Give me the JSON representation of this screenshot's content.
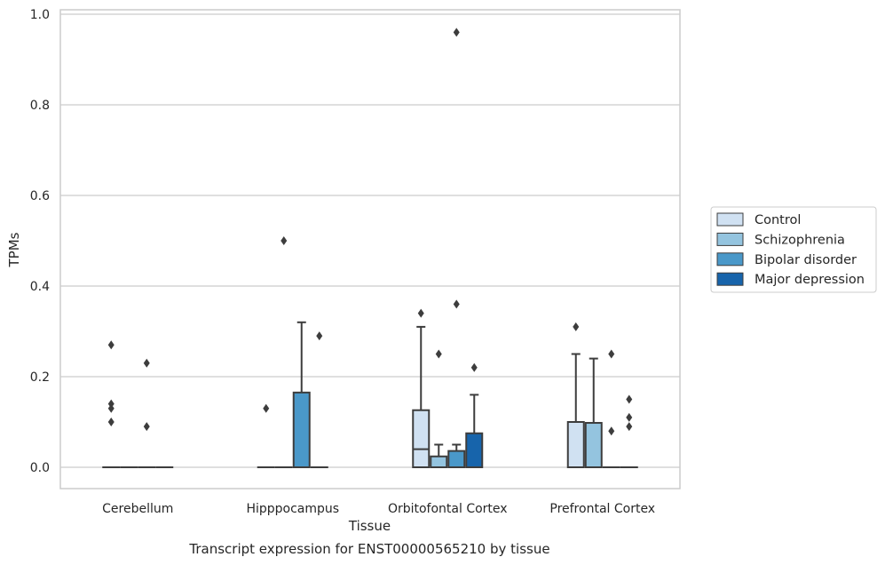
{
  "chart_data": {
    "type": "boxplot",
    "title": "",
    "caption": "Transcript expression for ENST00000565210 by tissue",
    "xlabel": "Tissue",
    "ylabel": "TPMs",
    "ylim": [
      -0.045,
      1.01
    ],
    "yticks": [
      "0.0",
      "0.2",
      "0.4",
      "0.6",
      "0.8",
      "1.0"
    ],
    "grid": "horizontal",
    "legend_position": "right",
    "categories": [
      "Cerebellum",
      "Hipppocampus",
      "Orbitofontal Cortex",
      "Prefrontal Cortex"
    ],
    "series": [
      {
        "name": "Control",
        "color": "#d0e1f2"
      },
      {
        "name": "Schizophrenia",
        "color": "#94c4df"
      },
      {
        "name": "Bipolar disorder",
        "color": "#4a98c9"
      },
      {
        "name": "Major depression",
        "color": "#1764ab"
      }
    ],
    "boxes": [
      [
        {
          "q1": 0,
          "median": 0,
          "q3": 0,
          "whisker_low": 0,
          "whisker_high": 0,
          "outliers": [
            0.1,
            0.27,
            0.14,
            0.13
          ]
        },
        {
          "q1": 0,
          "median": 0,
          "q3": 0,
          "whisker_low": 0,
          "whisker_high": 0,
          "outliers": []
        },
        {
          "q1": 0,
          "median": 0,
          "q3": 0,
          "whisker_low": 0,
          "whisker_high": 0,
          "outliers": [
            0.23,
            0.09
          ]
        },
        {
          "q1": 0,
          "median": 0,
          "q3": 0,
          "whisker_low": 0,
          "whisker_high": 0,
          "outliers": []
        }
      ],
      [
        {
          "q1": 0,
          "median": 0,
          "q3": 0,
          "whisker_low": 0,
          "whisker_high": 0,
          "outliers": [
            0.13
          ]
        },
        {
          "q1": 0,
          "median": 0,
          "q3": 0,
          "whisker_low": 0,
          "whisker_high": 0,
          "outliers": [
            0.5
          ]
        },
        {
          "q1": 0,
          "median": 0,
          "q3": 0.165,
          "whisker_low": 0,
          "whisker_high": 0.32,
          "outliers": []
        },
        {
          "q1": 0,
          "median": 0,
          "q3": 0,
          "whisker_low": 0,
          "whisker_high": 0,
          "outliers": [
            0.29
          ]
        }
      ],
      [
        {
          "q1": 0,
          "median": 0.04,
          "q3": 0.126,
          "whisker_low": 0,
          "whisker_high": 0.31,
          "outliers": [
            0.34
          ]
        },
        {
          "q1": 0,
          "median": 0,
          "q3": 0.024,
          "whisker_low": 0,
          "whisker_high": 0.05,
          "outliers": [
            0.25
          ]
        },
        {
          "q1": 0,
          "median": 0,
          "q3": 0.036,
          "whisker_low": 0,
          "whisker_high": 0.05,
          "outliers": [
            0.96,
            0.36
          ]
        },
        {
          "q1": 0,
          "median": 0,
          "q3": 0.075,
          "whisker_low": 0,
          "whisker_high": 0.16,
          "outliers": [
            0.22
          ]
        }
      ],
      [
        {
          "q1": 0,
          "median": 0,
          "q3": 0.1,
          "whisker_low": 0,
          "whisker_high": 0.25,
          "outliers": [
            0.31
          ]
        },
        {
          "q1": 0,
          "median": 0,
          "q3": 0.098,
          "whisker_low": 0,
          "whisker_high": 0.24,
          "outliers": []
        },
        {
          "q1": 0,
          "median": 0,
          "q3": 0,
          "whisker_low": 0,
          "whisker_high": 0,
          "outliers": [
            0.25,
            0.08
          ]
        },
        {
          "q1": 0,
          "median": 0,
          "q3": 0,
          "whisker_low": 0,
          "whisker_high": 0,
          "outliers": [
            0.15,
            0.11,
            0.09
          ]
        }
      ]
    ]
  }
}
